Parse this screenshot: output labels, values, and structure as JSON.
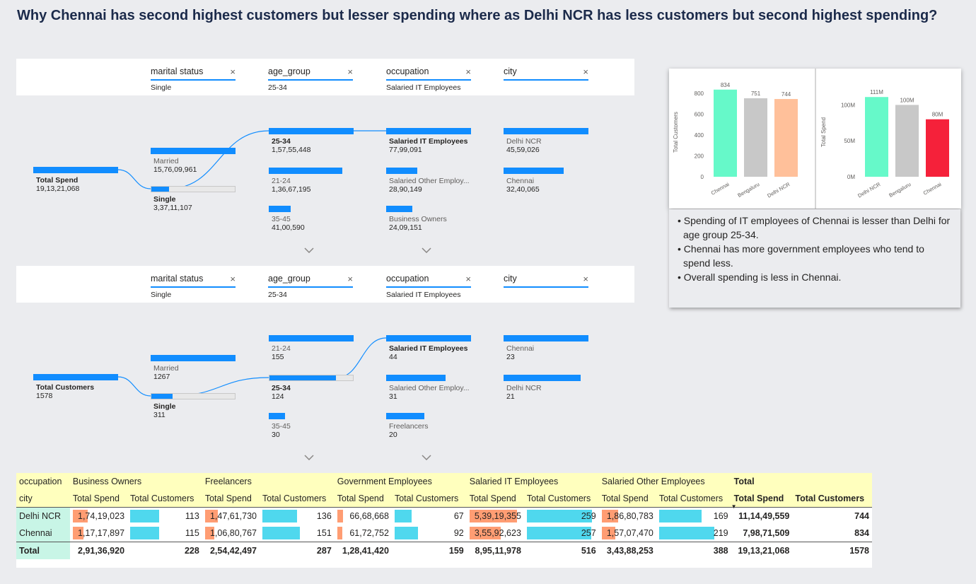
{
  "title": "Why Chennai has second highest customers but lesser spending where as Delhi NCR has less customers but second highest spending?",
  "slicers": [
    {
      "label": "marital status",
      "value": "Single"
    },
    {
      "label": "age_group",
      "value": "25-34"
    },
    {
      "label": "occupation",
      "value": "Salaried IT Employees"
    },
    {
      "label": "city",
      "value": ""
    }
  ],
  "tree_spend": {
    "root": {
      "label": "Total Spend",
      "value": "19,13,21,068"
    },
    "marital": [
      {
        "label": "Married",
        "value": "15,76,09,961",
        "fill": 1.0
      },
      {
        "label": "Single",
        "value": "3,37,11,107",
        "fill": 0.21
      }
    ],
    "age": [
      {
        "label": "25-34",
        "value": "1,57,55,448",
        "fill": 1.0
      },
      {
        "label": "21-24",
        "value": "1,36,67,195",
        "fill": 0.87
      },
      {
        "label": "35-45",
        "value": "41,00,590",
        "fill": 0.26
      }
    ],
    "occupation": [
      {
        "label": "Salaried IT Employees",
        "value": "77,99,091",
        "fill": 1.0
      },
      {
        "label": "Salaried Other Employ...",
        "value": "28,90,149",
        "fill": 0.37
      },
      {
        "label": "Business Owners",
        "value": "24,09,151",
        "fill": 0.31
      }
    ],
    "city": [
      {
        "label": "Delhi NCR",
        "value": "45,59,026",
        "fill": 1.0
      },
      {
        "label": "Chennai",
        "value": "32,40,065",
        "fill": 0.71
      }
    ]
  },
  "tree_customers": {
    "root": {
      "label": "Total Customers",
      "value": "1578"
    },
    "marital": [
      {
        "label": "Married",
        "value": "1267",
        "fill": 1.0
      },
      {
        "label": "Single",
        "value": "311",
        "fill": 0.25
      }
    ],
    "age": [
      {
        "label": "21-24",
        "value": "155",
        "fill": 1.0
      },
      {
        "label": "25-34",
        "value": "124",
        "fill": 0.8
      },
      {
        "label": "35-45",
        "value": "30",
        "fill": 0.19
      }
    ],
    "occupation": [
      {
        "label": "Salaried IT Employees",
        "value": "44",
        "fill": 1.0
      },
      {
        "label": "Salaried Other Employ...",
        "value": "31",
        "fill": 0.7
      },
      {
        "label": "Freelancers",
        "value": "20",
        "fill": 0.45
      }
    ],
    "city": [
      {
        "label": "Chennai",
        "value": "23",
        "fill": 1.0
      },
      {
        "label": "Delhi NCR",
        "value": "21",
        "fill": 0.91
      }
    ]
  },
  "chart_data": [
    {
      "type": "bar",
      "categories": [
        "Chennai",
        "Bengaluru",
        "Delhi NCR"
      ],
      "values": [
        834,
        751,
        744
      ],
      "data_labels": [
        "834",
        "751",
        "744"
      ],
      "ylabel": "Total Customers",
      "yticks": [
        "0",
        "200",
        "400",
        "600",
        "800"
      ],
      "ylim": [
        0,
        900
      ],
      "colors": [
        "#66F9C9",
        "#C8C8C8",
        "#FFC09A"
      ]
    },
    {
      "type": "bar",
      "categories": [
        "Delhi NCR",
        "Bengaluru",
        "Chennai"
      ],
      "values": [
        111,
        100,
        80
      ],
      "data_labels": [
        "111M",
        "100M",
        "80M"
      ],
      "ylabel": "Total Spend",
      "yticks": [
        "0M",
        "50M",
        "100M"
      ],
      "ylim": [
        0,
        125
      ],
      "colors": [
        "#66F9C9",
        "#C8C8C8",
        "#F5213A"
      ]
    }
  ],
  "notes": [
    "Spending of IT employees of Chennai is lesser than Delhi for age group 25-34.",
    "Chennai has more government employees who tend to spend less.",
    "Overall spending is less in Chennai."
  ],
  "matrix": {
    "row1": [
      "occupation",
      "Business Owners",
      "Freelancers",
      "Government Employees",
      "Salaried IT Employees",
      "Salaried Other Employees",
      "Total"
    ],
    "row2": [
      "city",
      "Total Spend",
      "Total Customers",
      "Total Spend",
      "Total Customers",
      "Total Spend",
      "Total Customers",
      "Total Spend",
      "Total Customers",
      "Total Spend",
      "Total Customers",
      "Total Spend",
      "Total Customers"
    ],
    "rows": [
      {
        "city": "Delhi NCR",
        "cells": [
          "1,74,19,023",
          "113",
          "1,47,61,730",
          "136",
          "66,68,668",
          "67",
          "5,39,19,355",
          "259",
          "1,86,80,783",
          "169",
          "11,14,49,559",
          "744"
        ],
        "spend_frac": [
          0.32,
          0.27,
          0.12,
          1.0,
          0.35
        ],
        "cust_frac": [
          0.44,
          0.53,
          0.26,
          1.0,
          0.65
        ]
      },
      {
        "city": "Chennai",
        "cells": [
          "1,17,17,897",
          "115",
          "1,06,80,767",
          "151",
          "61,72,752",
          "92",
          "3,55,92,623",
          "257",
          "1,57,07,470",
          "219",
          "7,98,71,509",
          "834"
        ],
        "spend_frac": [
          0.22,
          0.2,
          0.11,
          0.66,
          0.29
        ],
        "cust_frac": [
          0.44,
          0.58,
          0.36,
          0.99,
          0.85
        ]
      }
    ],
    "total": [
      "Total",
      "2,91,36,920",
      "228",
      "2,54,42,497",
      "287",
      "1,28,41,420",
      "159",
      "8,95,11,978",
      "516",
      "3,43,88,253",
      "388",
      "19,13,21,068",
      "1578"
    ],
    "spend_color": "#FF9D73",
    "cust_color": "#4FD8EE"
  }
}
